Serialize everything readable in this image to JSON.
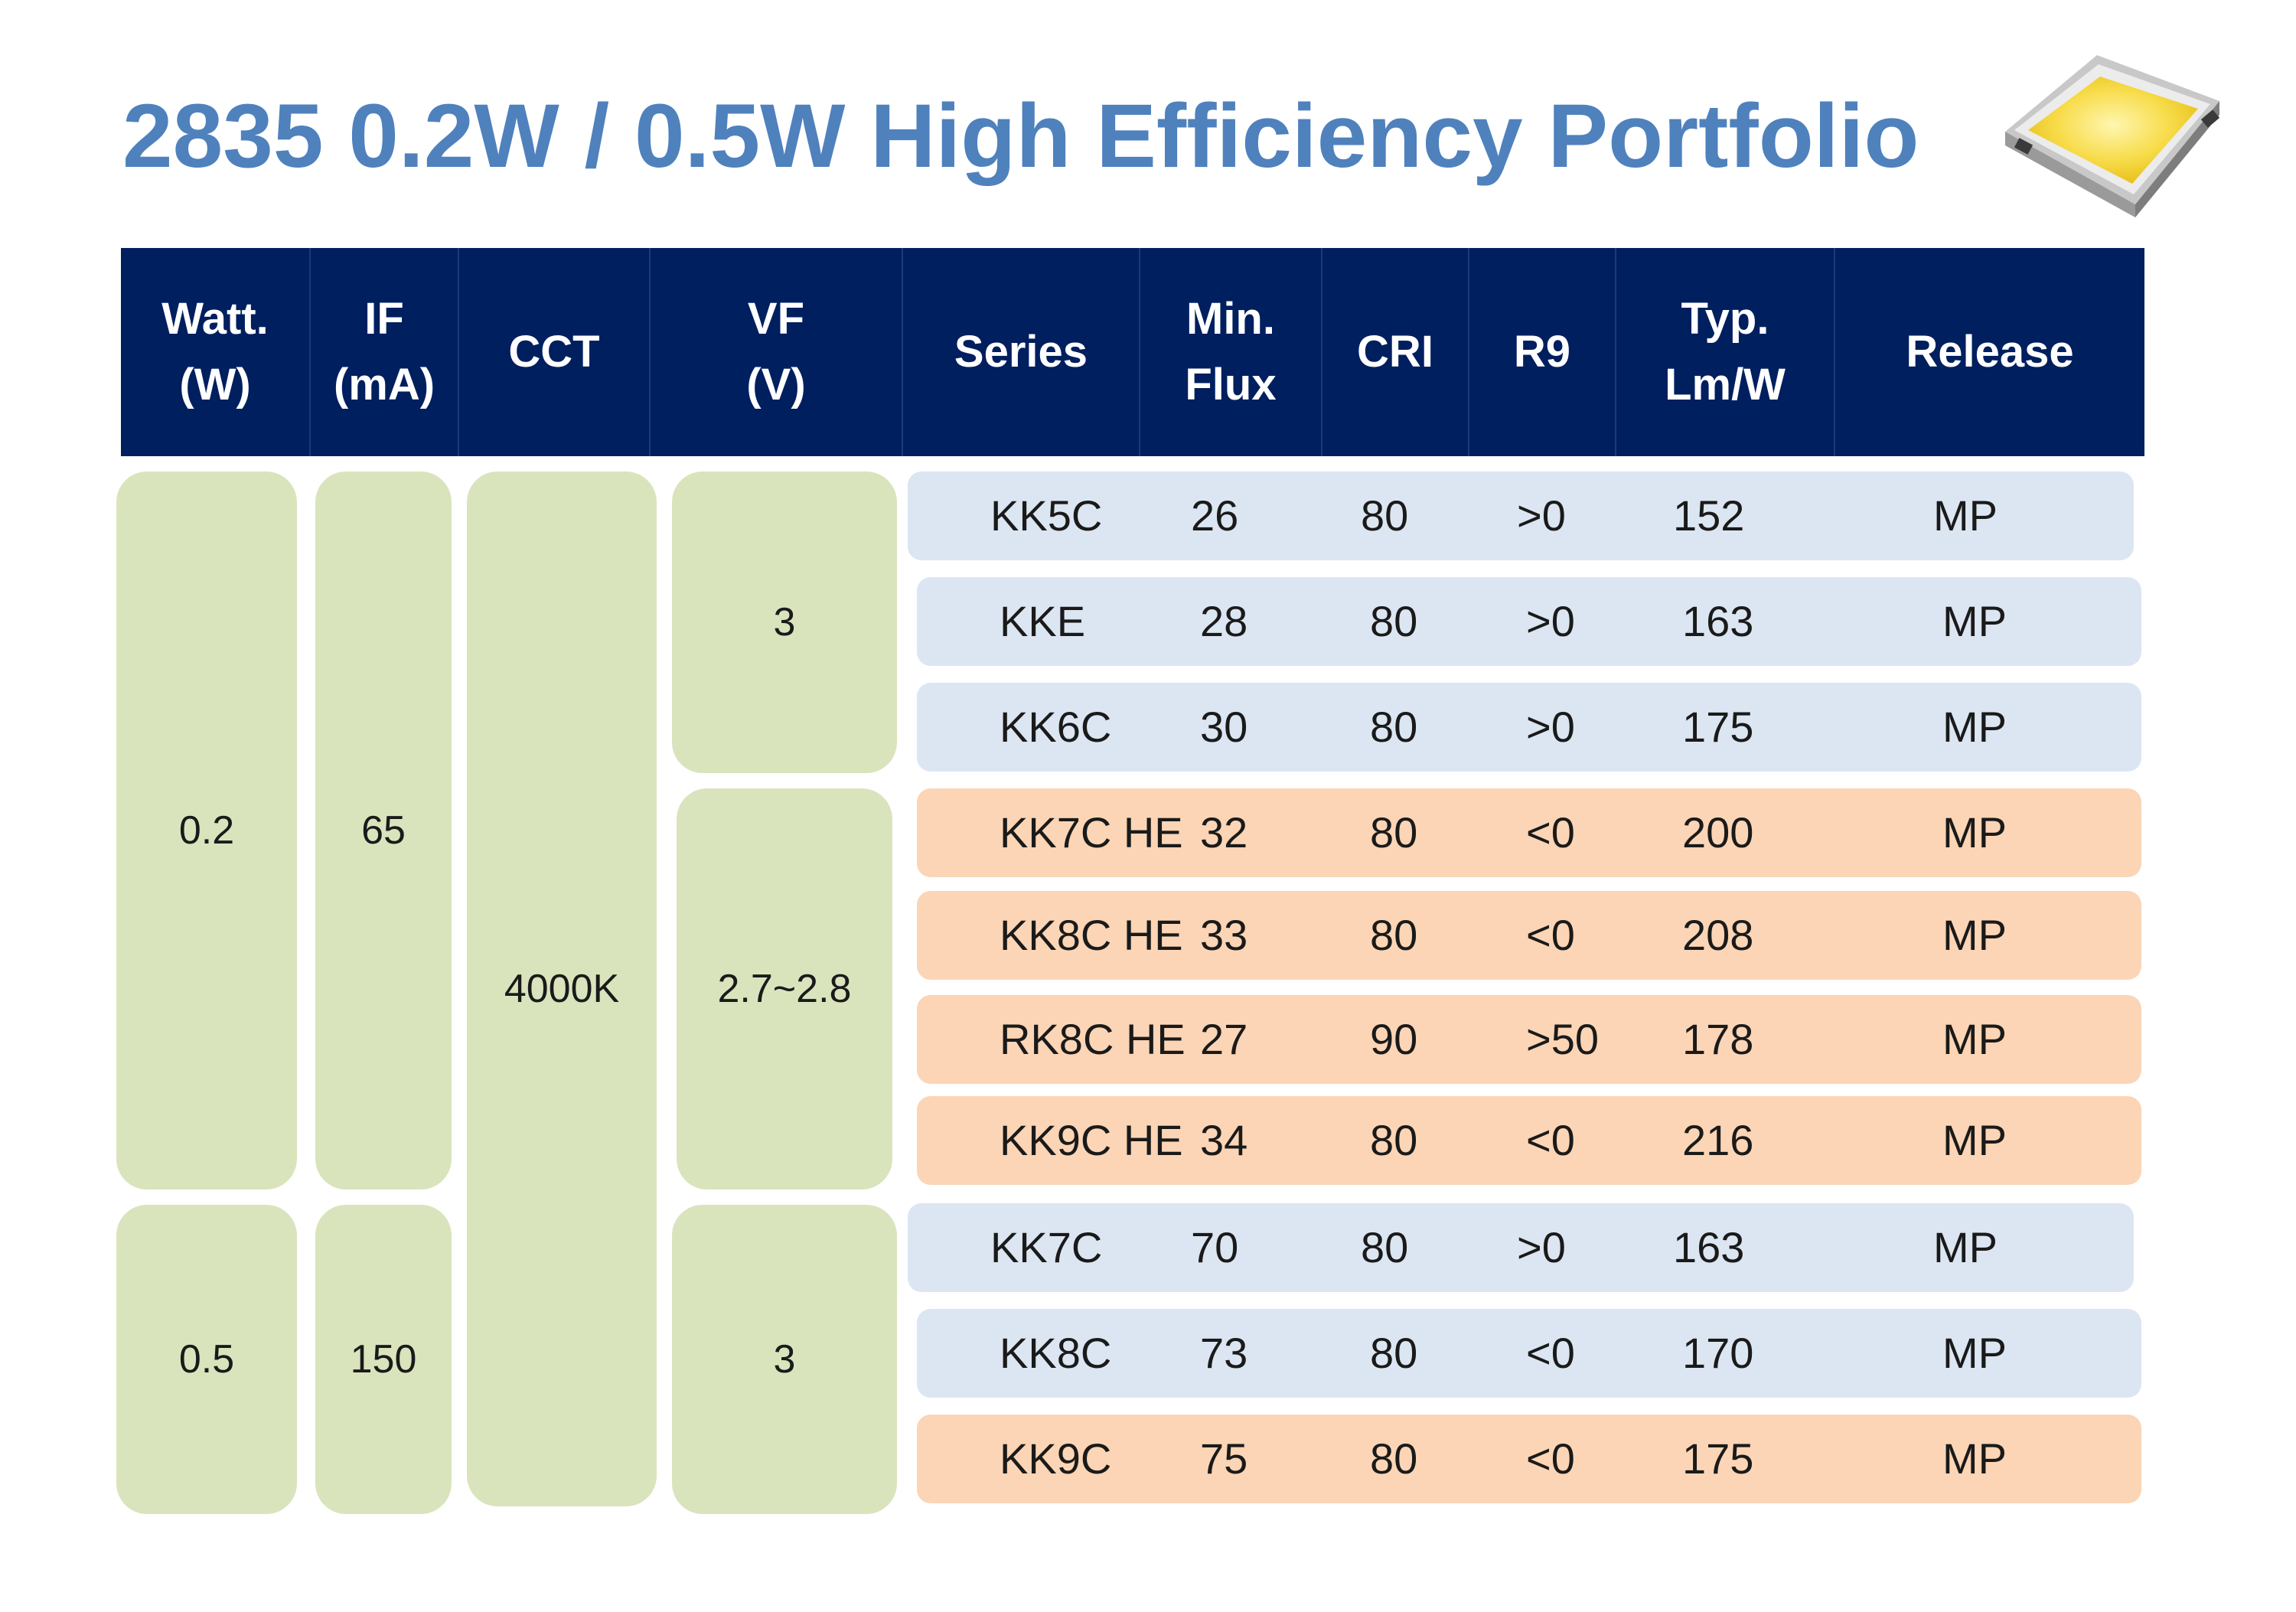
{
  "title": "2835 0.2W / 0.5W High Efficiency Portfolio",
  "image_label": "led-package-image",
  "header": {
    "watt": "Watt.\n(W)",
    "if": "IF\n(mA)",
    "cct": "CCT",
    "vf": "VF\n(V)",
    "series": "Series",
    "min_flux": "Min.\nFlux",
    "cri": "CRI",
    "r9": "R9",
    "typ_lmw": "Typ.\nLm/W",
    "release": "Release"
  },
  "groups": {
    "watt_1": "0.2",
    "watt_2": "0.5",
    "if_1": "65",
    "if_2": "150",
    "cct": "4000K",
    "vf_1": "3",
    "vf_2": "2.7~2.8",
    "vf_3": "3"
  },
  "rows": [
    {
      "series": "KK5C",
      "flux": "26",
      "cri": "80",
      "r9": ">0",
      "lmw": "152",
      "release": "MP",
      "color": "blue"
    },
    {
      "series": "KKE",
      "flux": "28",
      "cri": "80",
      "r9": ">0",
      "lmw": "163",
      "release": "MP",
      "color": "blue"
    },
    {
      "series": "KK6C",
      "flux": "30",
      "cri": "80",
      "r9": ">0",
      "lmw": "175",
      "release": "MP",
      "color": "blue"
    },
    {
      "series": "KK7C HE",
      "flux": "32",
      "cri": "80",
      "r9": "<0",
      "lmw": "200",
      "release": "MP",
      "color": "orange"
    },
    {
      "series": "KK8C HE",
      "flux": "33",
      "cri": "80",
      "r9": "<0",
      "lmw": "208",
      "release": "MP",
      "color": "orange"
    },
    {
      "series": "RK8C HE",
      "flux": "27",
      "cri": "90",
      "r9": ">50",
      "lmw": "178",
      "release": "MP",
      "color": "orange"
    },
    {
      "series": "KK9C HE",
      "flux": "34",
      "cri": "80",
      "r9": "<0",
      "lmw": "216",
      "release": "MP",
      "color": "orange"
    },
    {
      "series": "KK7C",
      "flux": "70",
      "cri": "80",
      "r9": ">0",
      "lmw": "163",
      "release": "MP",
      "color": "blue"
    },
    {
      "series": "KK8C",
      "flux": "73",
      "cri": "80",
      "r9": "<0",
      "lmw": "170",
      "release": "MP",
      "color": "blue"
    },
    {
      "series": "KK9C",
      "flux": "75",
      "cri": "80",
      "r9": "<0",
      "lmw": "175",
      "release": "MP",
      "color": "orange"
    }
  ],
  "colors": {
    "title": "#4f81bd",
    "header_bg": "#001f5f",
    "group_bg": "#d9e4bd",
    "row_blue": "#dce6f2",
    "row_orange": "#fbd5b5"
  }
}
